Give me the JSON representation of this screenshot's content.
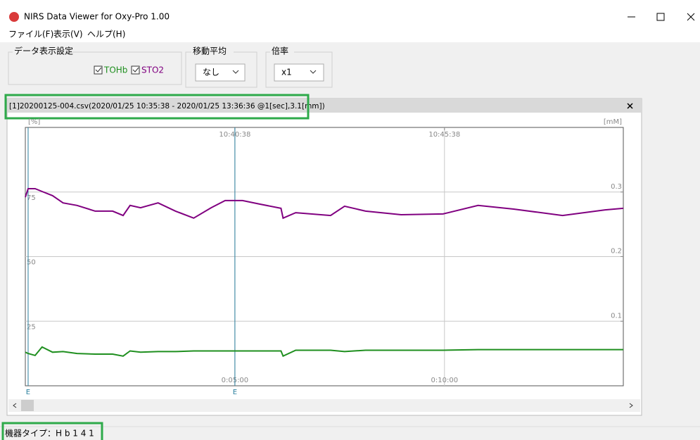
{
  "window": {
    "title": "NIRS Data Viewer for Oxy-Pro 1.00"
  },
  "menu": [
    "ファイル(F)",
    "表示(V)",
    "ヘルプ(H)"
  ],
  "settings": {
    "display_label": "データ表示設定",
    "moving_average_label": "移動平均",
    "moving_average_value": "なし",
    "scale_label": "倍率",
    "scale_value": "x1"
  },
  "panel": {
    "title": "[1]20200125-004.csv(2020/01/25 10:35:38 - 2020/01/25 13:36:36 @1[sec],3.1[mm])"
  },
  "chart_data": {
    "type": "line",
    "ylabel": "[%]",
    "y2label": "[mM]",
    "x": [
      0,
      4,
      14,
      24,
      39,
      54,
      74,
      100,
      125,
      140,
      150,
      165,
      190,
      215,
      241,
      266,
      286,
      311,
      336,
      366,
      369,
      387,
      437,
      457,
      487,
      538,
      598,
      648,
      699,
      769,
      830,
      856
    ],
    "xlim": [
      0,
      856
    ],
    "xticks": [
      {
        "value": 300,
        "label": "0:05:00"
      },
      {
        "value": 600,
        "label": "0:10:00"
      }
    ],
    "x2ticks": [
      {
        "value": 300,
        "label": "10:40:38"
      },
      {
        "value": 600,
        "label": "10:45:38"
      }
    ],
    "ylim": [
      0,
      100
    ],
    "yticks": [
      25,
      50,
      75
    ],
    "y2lim": [
      0,
      0.4
    ],
    "y2ticks": [
      0.1,
      0.2,
      0.3
    ],
    "grid": true,
    "series": [
      {
        "name": "TOHb",
        "color": "#1f8f1f",
        "axis": "y2",
        "values": [
          0.052,
          0.05,
          0.047,
          0.06,
          0.052,
          0.053,
          0.05,
          0.049,
          0.049,
          0.046,
          0.054,
          0.052,
          0.053,
          0.053,
          0.054,
          0.054,
          0.054,
          0.054,
          0.054,
          0.054,
          0.046,
          0.055,
          0.055,
          0.053,
          0.055,
          0.055,
          0.055,
          0.056,
          0.056,
          0.056,
          0.056,
          0.056
        ]
      },
      {
        "name": "STO2",
        "color": "#800080",
        "values": [
          73.0,
          76.3,
          76.3,
          75.2,
          73.6,
          70.8,
          69.8,
          67.6,
          67.6,
          65.9,
          69.8,
          68.9,
          70.8,
          67.6,
          64.9,
          68.9,
          71.7,
          71.7,
          70.3,
          68.7,
          64.9,
          67.0,
          65.9,
          69.5,
          67.6,
          66.2,
          66.5,
          69.8,
          68.4,
          65.9,
          68.1,
          68.7
        ]
      }
    ],
    "events": [
      {
        "x": 4,
        "label": "E"
      },
      {
        "x": 300,
        "label": "E"
      }
    ]
  },
  "status": "機器タイプ：H b 1 4 1"
}
